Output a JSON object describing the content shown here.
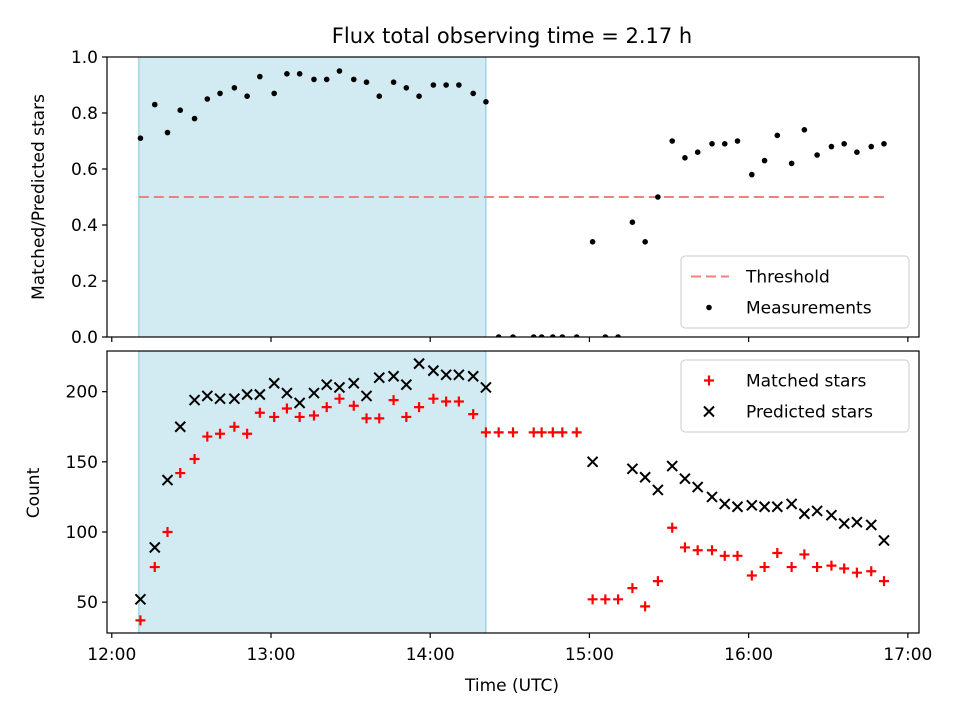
{
  "chart_data": {
    "type": "scatter",
    "title": "Flux total observing time = 2.17 h",
    "xlabel": "Time (UTC)",
    "x_ticks": [
      "12:00",
      "13:00",
      "14:00",
      "15:00",
      "16:00",
      "17:00"
    ],
    "x_range_hours": [
      11.97,
      17.07
    ],
    "shaded_interval_hours": [
      12.17,
      14.35
    ],
    "shade_color": "#add8e6",
    "panels": [
      {
        "id": "ratio",
        "ylabel": "Matched/Predicted stars",
        "ylim": [
          0.0,
          1.0
        ],
        "y_ticks": [
          "0.0",
          "0.2",
          "0.4",
          "0.6",
          "0.8",
          "1.0"
        ],
        "legend_position": "lower-right",
        "series": [
          {
            "name": "Threshold",
            "style": "dashed-line",
            "color": "#f08080",
            "x_hours": [
              12.17,
              16.85
            ],
            "y": [
              0.5,
              0.5
            ]
          },
          {
            "name": "Measurements",
            "style": "dot",
            "color": "#000000",
            "x_hours": [
              12.18,
              12.27,
              12.35,
              12.43,
              12.52,
              12.6,
              12.68,
              12.77,
              12.85,
              12.93,
              13.02,
              13.1,
              13.18,
              13.27,
              13.35,
              13.43,
              13.52,
              13.6,
              13.68,
              13.77,
              13.85,
              13.93,
              14.02,
              14.1,
              14.18,
              14.27,
              14.35,
              14.43,
              14.52,
              14.65,
              14.7,
              14.77,
              14.83,
              14.92,
              15.02,
              15.1,
              15.18,
              15.27,
              15.35,
              15.43,
              15.52,
              15.6,
              15.68,
              15.77,
              15.85,
              15.93,
              16.02,
              16.1,
              16.18,
              16.27,
              16.35,
              16.43,
              16.52,
              16.6,
              16.68,
              16.77,
              16.85
            ],
            "y": [
              0.71,
              0.83,
              0.73,
              0.81,
              0.78,
              0.85,
              0.87,
              0.89,
              0.86,
              0.93,
              0.87,
              0.94,
              0.94,
              0.92,
              0.92,
              0.95,
              0.92,
              0.91,
              0.86,
              0.91,
              0.89,
              0.86,
              0.9,
              0.9,
              0.9,
              0.87,
              0.84,
              0.0,
              0.0,
              0.0,
              0.0,
              0.0,
              0.0,
              0.0,
              0.34,
              0.0,
              0.0,
              0.41,
              0.34,
              0.5,
              0.7,
              0.64,
              0.66,
              0.69,
              0.69,
              0.7,
              0.58,
              0.63,
              0.72,
              0.62,
              0.74,
              0.65,
              0.68,
              0.69,
              0.66,
              0.68,
              0.69
            ]
          }
        ]
      },
      {
        "id": "count",
        "ylabel": "Count",
        "ylim": [
          28,
          229
        ],
        "y_ticks": [
          "50",
          "100",
          "150",
          "200"
        ],
        "legend_position": "upper-right",
        "series": [
          {
            "name": "Matched stars",
            "style": "plus",
            "color": "#ff0000",
            "x_hours": [
              12.18,
              12.27,
              12.35,
              12.43,
              12.52,
              12.6,
              12.68,
              12.77,
              12.85,
              12.93,
              13.02,
              13.1,
              13.18,
              13.27,
              13.35,
              13.43,
              13.52,
              13.6,
              13.68,
              13.77,
              13.85,
              13.93,
              14.02,
              14.1,
              14.18,
              14.27,
              14.35,
              14.43,
              14.52,
              14.65,
              14.7,
              14.77,
              14.83,
              14.92,
              15.02,
              15.1,
              15.18,
              15.27,
              15.35,
              15.43,
              15.52,
              15.6,
              15.68,
              15.77,
              15.85,
              15.93,
              16.02,
              16.1,
              16.18,
              16.27,
              16.35,
              16.43,
              16.52,
              16.6,
              16.68,
              16.77,
              16.85
            ],
            "y": [
              37,
              75,
              100,
              142,
              152,
              168,
              170,
              175,
              170,
              185,
              182,
              188,
              182,
              183,
              189,
              195,
              190,
              181,
              181,
              194,
              182,
              189,
              195,
              193,
              193,
              184,
              171,
              171,
              171,
              171,
              171,
              171,
              171,
              171,
              52,
              52,
              52,
              60,
              47,
              65,
              103,
              89,
              87,
              87,
              83,
              83,
              69,
              75,
              85,
              75,
              84,
              75,
              76,
              74,
              71,
              72,
              65
            ]
          },
          {
            "name": "Predicted stars",
            "style": "x",
            "color": "#000000",
            "x_hours": [
              12.18,
              12.27,
              12.35,
              12.43,
              12.52,
              12.6,
              12.68,
              12.77,
              12.85,
              12.93,
              13.02,
              13.1,
              13.18,
              13.27,
              13.35,
              13.43,
              13.52,
              13.6,
              13.68,
              13.77,
              13.85,
              13.93,
              14.02,
              14.1,
              14.18,
              14.27,
              14.35,
              15.02,
              15.27,
              15.35,
              15.43,
              15.52,
              15.6,
              15.68,
              15.77,
              15.85,
              15.93,
              16.02,
              16.1,
              16.18,
              16.27,
              16.35,
              16.43,
              16.52,
              16.6,
              16.68,
              16.77,
              16.85
            ],
            "y": [
              52,
              89,
              137,
              175,
              194,
              197,
              195,
              195,
              198,
              198,
              206,
              199,
              192,
              199,
              205,
              203,
              206,
              197,
              210,
              211,
              205,
              220,
              215,
              212,
              212,
              211,
              203,
              150,
              145,
              139,
              130,
              147,
              138,
              132,
              125,
              120,
              118,
              119,
              118,
              118,
              120,
              113,
              115,
              112,
              106,
              107,
              105,
              94
            ]
          }
        ]
      }
    ]
  }
}
